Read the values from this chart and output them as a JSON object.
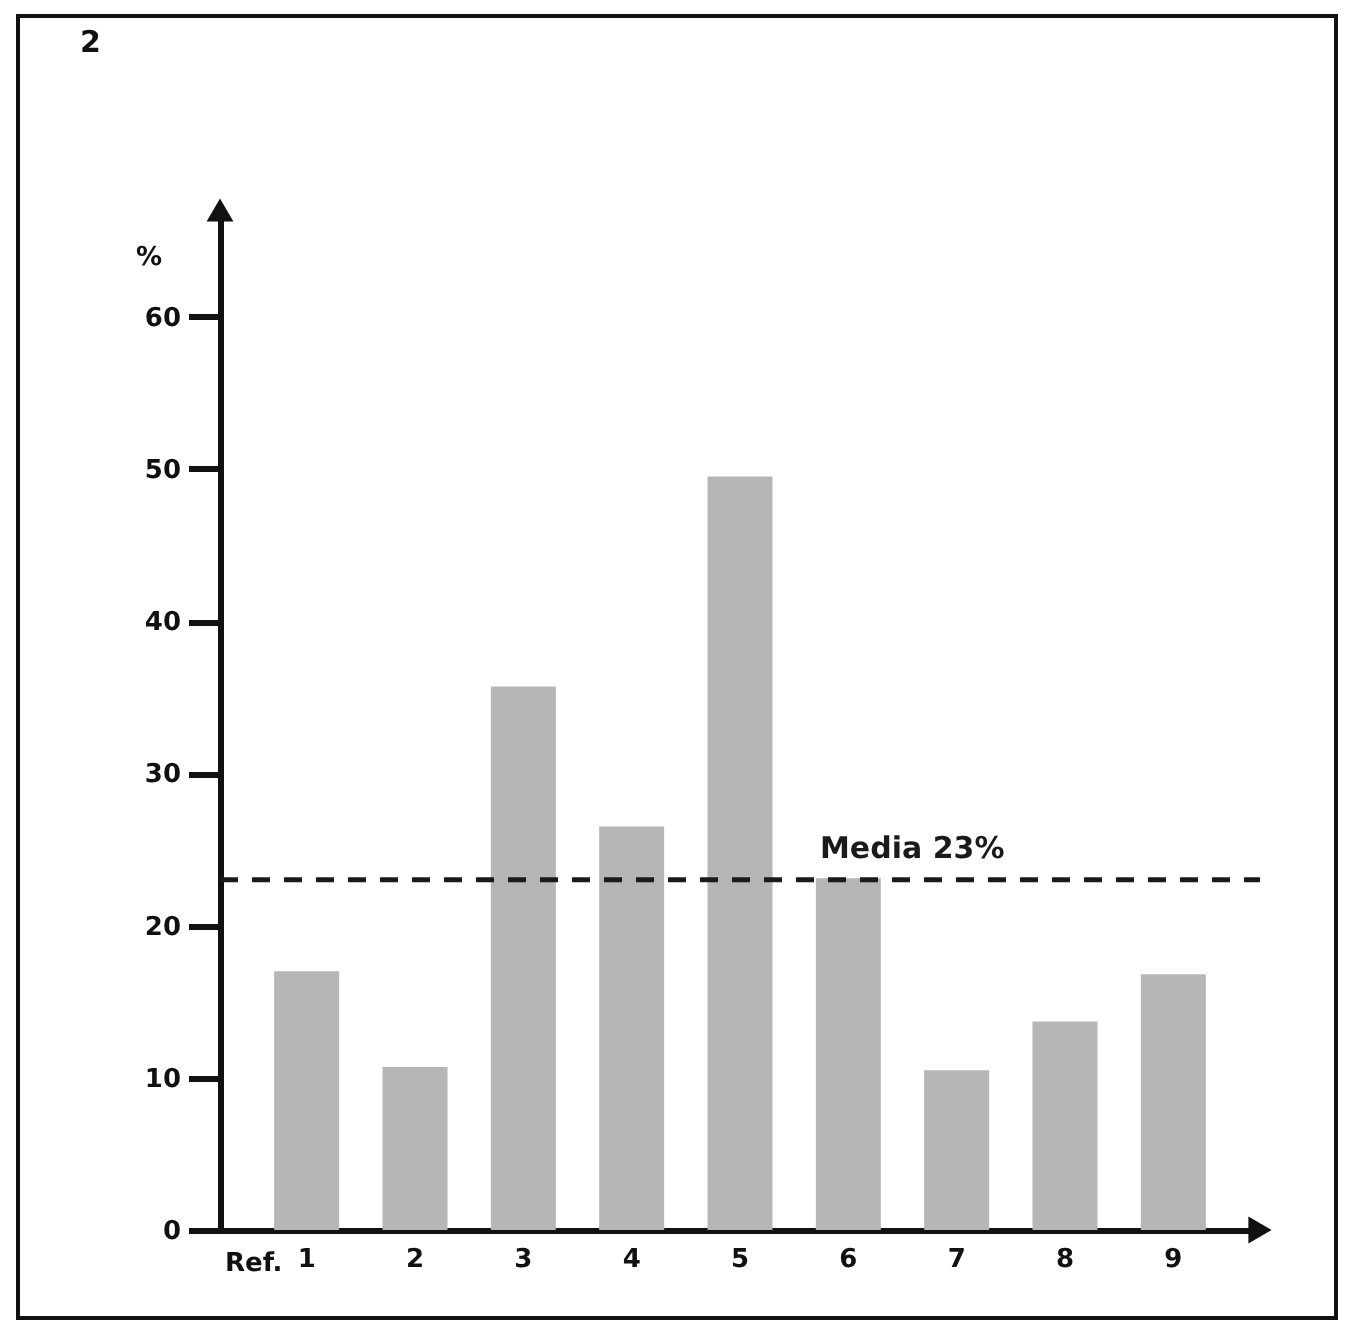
{
  "chart_data": {
    "type": "bar",
    "title": "2",
    "xlabel": "Ref.",
    "ylabel": "%",
    "categories": [
      "1",
      "2",
      "3",
      "4",
      "5",
      "6",
      "7",
      "8",
      "9"
    ],
    "values": [
      17.0,
      10.7,
      35.7,
      26.5,
      49.5,
      23.1,
      10.5,
      13.7,
      16.8
    ],
    "color": "#b6b6b6",
    "ylim": [
      0,
      67
    ],
    "yticks": [
      0,
      10,
      20,
      30,
      40,
      50,
      60
    ],
    "ref_lines": [
      {
        "axis": "y",
        "value": 23,
        "label": "Media 23%",
        "color": "#1a1a1a",
        "line_style": "dashed"
      }
    ]
  }
}
